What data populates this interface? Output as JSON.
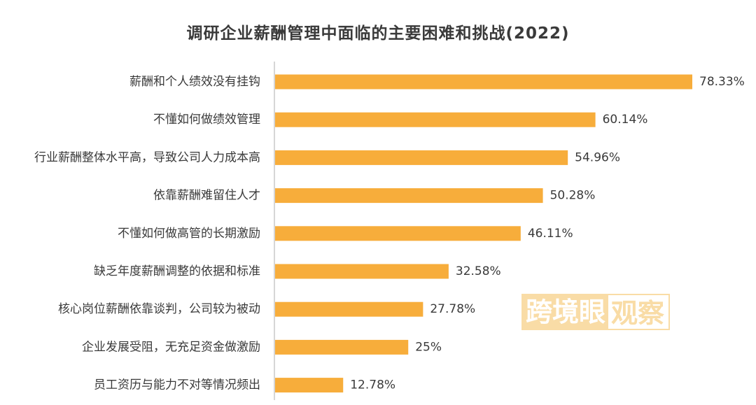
{
  "chart_data": {
    "type": "bar",
    "orientation": "horizontal",
    "title": "调研企业薪酬管理中面临的主要困难和挑战(2022)",
    "categories": [
      "薪酬和个人绩效没有挂钩",
      "不懂如何做绩效管理",
      "行业薪酬整体水平高，导致公司人力成本高",
      "依靠薪酬难留住人才",
      "不懂如何做高管的长期激励",
      "缺乏年度薪酬调整的依据和标准",
      "核心岗位薪酬依靠谈判，公司较为被动",
      "企业发展受阻，无充足资金做激励",
      "员工资历与能力不对等情况频出"
    ],
    "values": [
      78.33,
      60.14,
      54.96,
      50.28,
      46.11,
      32.58,
      27.78,
      25,
      12.78
    ],
    "value_labels": [
      "78.33%",
      "60.14%",
      "54.96%",
      "50.28%",
      "46.11%",
      "32.58%",
      "27.78%",
      "25%",
      "12.78%"
    ],
    "bar_color": "#f7ad3b",
    "axis_color": "#c8c8c8",
    "label_color": "#3a3a3a",
    "xlim": [
      0,
      78.33
    ],
    "grid": false,
    "legend": "none"
  },
  "watermark": {
    "part1": "跨境眼",
    "part2": "观察"
  }
}
